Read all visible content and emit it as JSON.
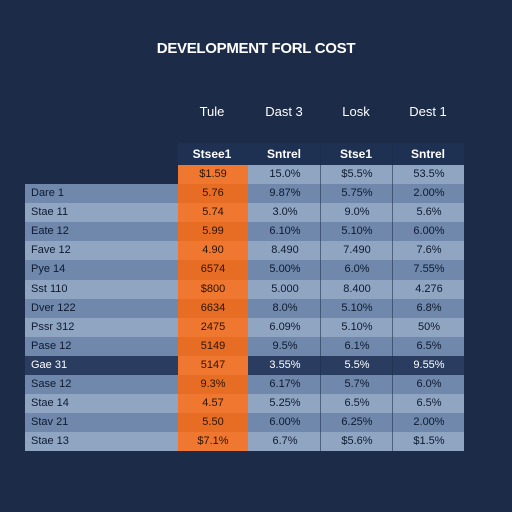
{
  "title": "DEVELOPMENT FORL COST",
  "chart_data": {
    "type": "table",
    "columns": [
      "Tule",
      "Dast 3",
      "Losk",
      "Dest 1"
    ],
    "subheaders": [
      "Stsee1",
      "Sntrel",
      "Stse1",
      "Sntrel"
    ],
    "rows": [
      {
        "label": "",
        "values": [
          "$1.59",
          "15.0%",
          "$5.5%",
          "53.5%"
        ]
      },
      {
        "label": "Dare 1",
        "values": [
          "5.76",
          "9.87%",
          "5.75%",
          "2.00%"
        ]
      },
      {
        "label": "Stae 11",
        "values": [
          "5.74",
          "3.0%",
          "9.0%",
          "5.6%"
        ]
      },
      {
        "label": "Eate 12",
        "values": [
          "5.99",
          "6.10%",
          "5.10%",
          "6.00%"
        ]
      },
      {
        "label": "Fave 12",
        "values": [
          "4.90",
          "8.490",
          "7.490",
          "7.6%"
        ]
      },
      {
        "label": "Pye 14",
        "values": [
          "6574",
          "5.00%",
          "6.0%",
          "7.55%"
        ]
      },
      {
        "label": "Sst 110",
        "values": [
          "$800",
          "5.000",
          "8.400",
          "4.276"
        ]
      },
      {
        "label": "Dver 122",
        "values": [
          "6634",
          "8.0%",
          "5.10%",
          "6.8%"
        ]
      },
      {
        "label": "Pssr 312",
        "values": [
          "2475",
          "6.09%",
          "5.10%",
          "50%"
        ]
      },
      {
        "label": "Pase 12",
        "values": [
          "5149",
          "9.5%",
          "6.1%",
          "6.5%"
        ]
      },
      {
        "label": "Gae 31",
        "values": [
          "5147",
          "3.55%",
          "5.5%",
          "9.55%"
        ]
      },
      {
        "label": "Sase 12",
        "values": [
          "9.3%",
          "6.17%",
          "5.7%",
          "6.0%"
        ]
      },
      {
        "label": "Stae 14",
        "values": [
          "4.57",
          "5.25%",
          "6.5%",
          "6.5%"
        ]
      },
      {
        "label": "Stav 21",
        "values": [
          "5.50",
          "6.00%",
          "6.25%",
          "2.00%"
        ]
      },
      {
        "label": "Stae 13",
        "values": [
          "$7.1%",
          "6.7%",
          "$5.6%",
          "$1.5%"
        ]
      }
    ]
  },
  "colors": {
    "background": "#1c2b48",
    "accent_column": "#f0772f",
    "accent_column_alt": "#e86d24",
    "row_light": "#8fa5c2",
    "row_mid": "#6f88ab",
    "row_dark": "#2a3d60"
  }
}
